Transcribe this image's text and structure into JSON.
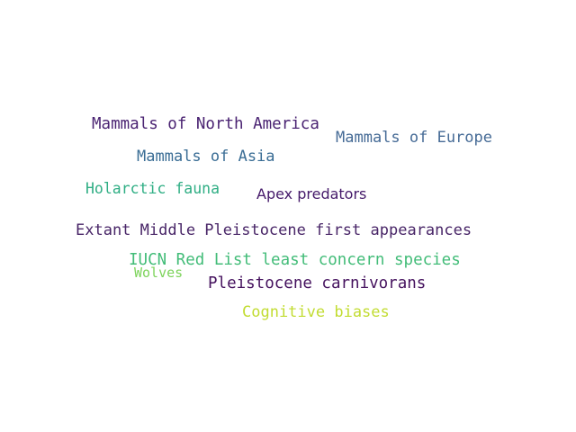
{
  "words": [
    {
      "text": "Mammals of North America",
      "color": "#4a2372"
    },
    {
      "text": "Mammals of Europe",
      "color": "#466b96"
    },
    {
      "text": "Mammals of Asia",
      "color": "#3a6d95"
    },
    {
      "text": "Holarctic fauna",
      "color": "#2fae84"
    },
    {
      "text": "Apex predators",
      "color": "#451a6a"
    },
    {
      "text": "Extant Middle Pleistocene first appearances",
      "color": "#482567"
    },
    {
      "text": "IUCN Red List least concern species",
      "color": "#42bc78"
    },
    {
      "text": "Wolves",
      "color": "#7cd35a"
    },
    {
      "text": "Pleistocene carnivorans",
      "color": "#45125e"
    },
    {
      "text": "Cognitive biases",
      "color": "#c2dc32"
    }
  ]
}
